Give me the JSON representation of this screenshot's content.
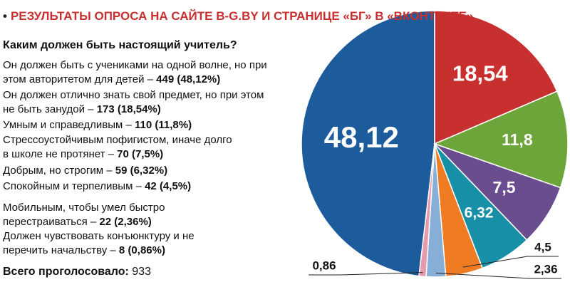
{
  "chart_data": {
    "type": "pie",
    "title": "РЕЗУЛЬТАТЫ ОПРОСА НА САЙТЕ B-G.BY И СТРАНИЦЕ «БГ» В «ВКОНТАКТЕ»",
    "subtitle": "Каким должен быть настоящий учитель?",
    "categories": [
      "Он должен быть с учениками на одной волне, но при этом авторитетом для детей",
      "Он должен отлично знать свой предмет, но при этом не быть занудой",
      "Умным и справедливым",
      "Стрессоустойчивым пофигистом, иначе долго в школе не протянет",
      "Добрым, но строгим",
      "Спокойным и терпеливым",
      "Мобильным, чтобы умел быстро перестраиваться",
      "Должен чувствовать конъюнктуру и не перечить начальству"
    ],
    "separator": "–",
    "counts": [
      449,
      173,
      110,
      70,
      59,
      42,
      22,
      8
    ],
    "percent_labels": [
      "(48,12%)",
      "(18,54%)",
      "(11,8%)",
      "(7,5%)",
      "(6,32%)",
      "(4,5%)",
      "(2,36%)",
      "(0,86%)"
    ],
    "values": [
      48.12,
      18.54,
      11.8,
      7.5,
      6.32,
      4.5,
      2.36,
      0.86
    ],
    "value_labels": [
      "48,12",
      "18,54",
      "11,8",
      "7,5",
      "6,32",
      "4,5",
      "2,36",
      "0,86"
    ],
    "colors": [
      "#1c5c9c",
      "#c8302f",
      "#6ca63a",
      "#6a4d8e",
      "#178fa6",
      "#ef7b22",
      "#86aed6",
      "#e79aae"
    ],
    "total_label": "Всего проголосовало:",
    "total": 933
  }
}
